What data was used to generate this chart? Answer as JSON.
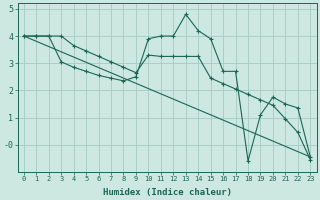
{
  "xlabel": "Humidex (Indice chaleur)",
  "xlim": [
    -0.5,
    23.5
  ],
  "ylim": [
    -1.0,
    5.2
  ],
  "background_color": "#cce8e0",
  "grid_color": "#aacec6",
  "line_color": "#1a6655",
  "line1_x": [
    0,
    1,
    2,
    3,
    4,
    5,
    6,
    7,
    8,
    9,
    10,
    11,
    12,
    13,
    14,
    15,
    16,
    17,
    18,
    19,
    20,
    21,
    22,
    23
  ],
  "line1_y": [
    4.0,
    4.0,
    4.0,
    3.05,
    2.85,
    2.7,
    2.55,
    2.45,
    2.35,
    2.5,
    3.9,
    4.0,
    4.0,
    4.8,
    4.2,
    3.9,
    2.7,
    2.7,
    -0.6,
    1.1,
    1.75,
    1.5,
    1.35,
    -0.45
  ],
  "line2_x": [
    0,
    1,
    2,
    3,
    4,
    5,
    6,
    7,
    8,
    9,
    10,
    11,
    12,
    13,
    14,
    15,
    16,
    17,
    18,
    19,
    20,
    21,
    22,
    23
  ],
  "line2_y": [
    4.0,
    4.0,
    4.0,
    4.0,
    3.65,
    3.45,
    3.25,
    3.05,
    2.85,
    2.65,
    3.3,
    3.25,
    3.25,
    3.25,
    3.25,
    2.45,
    2.25,
    2.05,
    1.85,
    1.65,
    1.45,
    0.95,
    0.45,
    -0.55
  ],
  "line3_x": [
    0,
    23
  ],
  "line3_y": [
    4.0,
    -0.45
  ]
}
